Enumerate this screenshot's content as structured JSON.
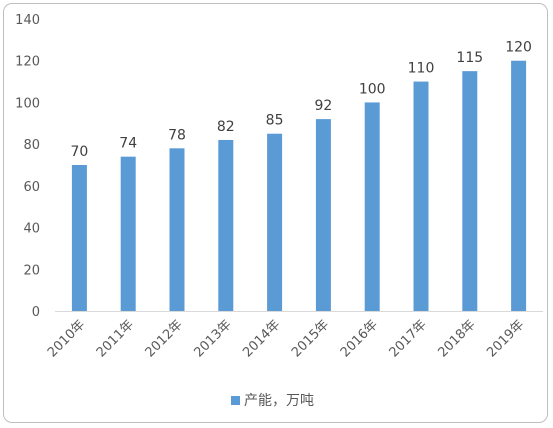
{
  "chart_data": {
    "type": "bar",
    "categories": [
      "2010年",
      "2011年",
      "2012年",
      "2013年",
      "2014年",
      "2015年",
      "2016年",
      "2017年",
      "2018年",
      "2019年"
    ],
    "series": [
      {
        "name": "产能，万吨",
        "values": [
          70,
          74,
          78,
          82,
          85,
          92,
          100,
          110,
          115,
          120
        ]
      }
    ],
    "yticks": [
      "0",
      "20",
      "40",
      "60",
      "80",
      "100",
      "120",
      "140"
    ],
    "ylim": [
      0,
      140
    ],
    "grid": false,
    "legend": "bottom",
    "bar_color": "#5b9bd5"
  }
}
